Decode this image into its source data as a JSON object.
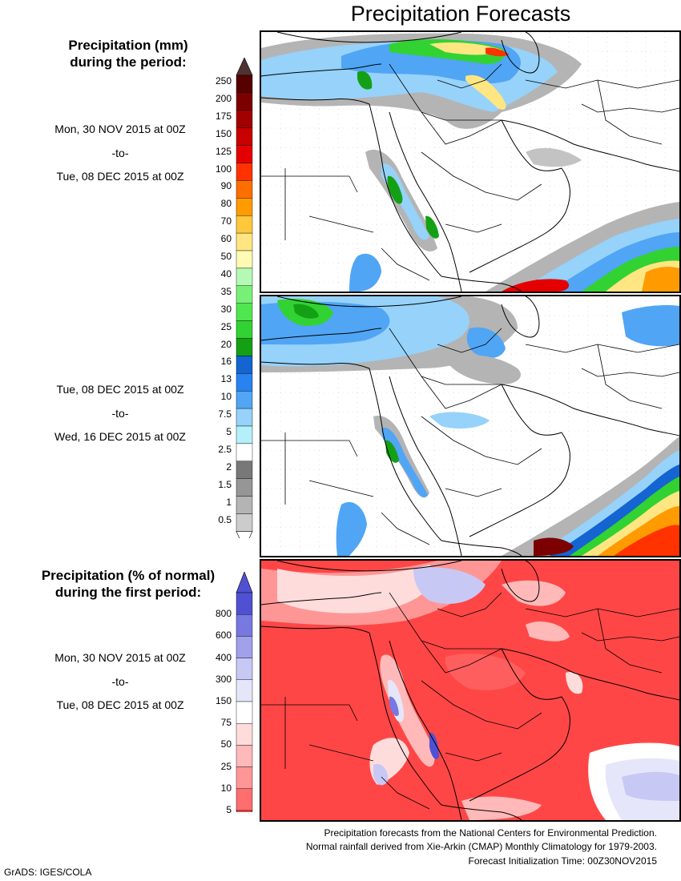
{
  "title": "Precipitation Forecasts",
  "precip_legend": {
    "title_line1": "Precipitation (mm)",
    "title_line2": "during the period:",
    "levels": [
      "250",
      "200",
      "175",
      "150",
      "125",
      "100",
      "90",
      "80",
      "70",
      "60",
      "50",
      "40",
      "35",
      "30",
      "25",
      "20",
      "16",
      "13",
      "10",
      "7.5",
      "5",
      "2.5",
      "2",
      "1.5",
      "1",
      "0.5"
    ],
    "colors": [
      "#560000",
      "#7d0000",
      "#a20000",
      "#c80000",
      "#e40000",
      "#ff3200",
      "#ff6e00",
      "#ff9b00",
      "#ffc83c",
      "#ffe682",
      "#fffab4",
      "#b4fab4",
      "#78f078",
      "#50e650",
      "#32d232",
      "#14a014",
      "#1464d2",
      "#2882f0",
      "#50a5f5",
      "#96d2fa",
      "#b4f0fa",
      "#ffffff",
      "#787878",
      "#969696",
      "#b4b4b4",
      "#cccccc"
    ],
    "top_arrow_color": "#503232"
  },
  "period1": {
    "start": "Mon, 30 NOV 2015 at 00Z",
    "sep": "-to-",
    "end": "Tue, 08 DEC 2015 at 00Z"
  },
  "period2": {
    "start": "Tue, 08 DEC 2015 at 00Z",
    "sep": "-to-",
    "end": "Wed, 16 DEC 2015 at 00Z"
  },
  "pct_legend": {
    "title_line1": "Precipitation (% of normal)",
    "title_line2": "during the first period:",
    "levels": [
      "800",
      "600",
      "400",
      "300",
      "150",
      "75",
      "50",
      "25",
      "10",
      "5"
    ],
    "colors": [
      "#5050d2",
      "#7878e1",
      "#a0a0eb",
      "#c8c8f5",
      "#e6e6fa",
      "#ffffff",
      "#ffdcdc",
      "#ffb9b9",
      "#ff9696",
      "#ff6e6e",
      "#ff4646"
    ]
  },
  "period3": {
    "start": "Mon, 30 NOV 2015 at 00Z",
    "sep": "-to-",
    "end": "Tue, 08 DEC 2015 at 00Z"
  },
  "footer": {
    "line1": "Precipitation forecasts from the National Centers for Environmental Prediction.",
    "line2": "Normal rainfall derived from Xie-Arkin (CMAP) Monthly Climatology for 1979-2003.",
    "line3": "Forecast Initialization Time: 00Z30NOV2015"
  },
  "credit": "GrADS: IGES/COLA"
}
